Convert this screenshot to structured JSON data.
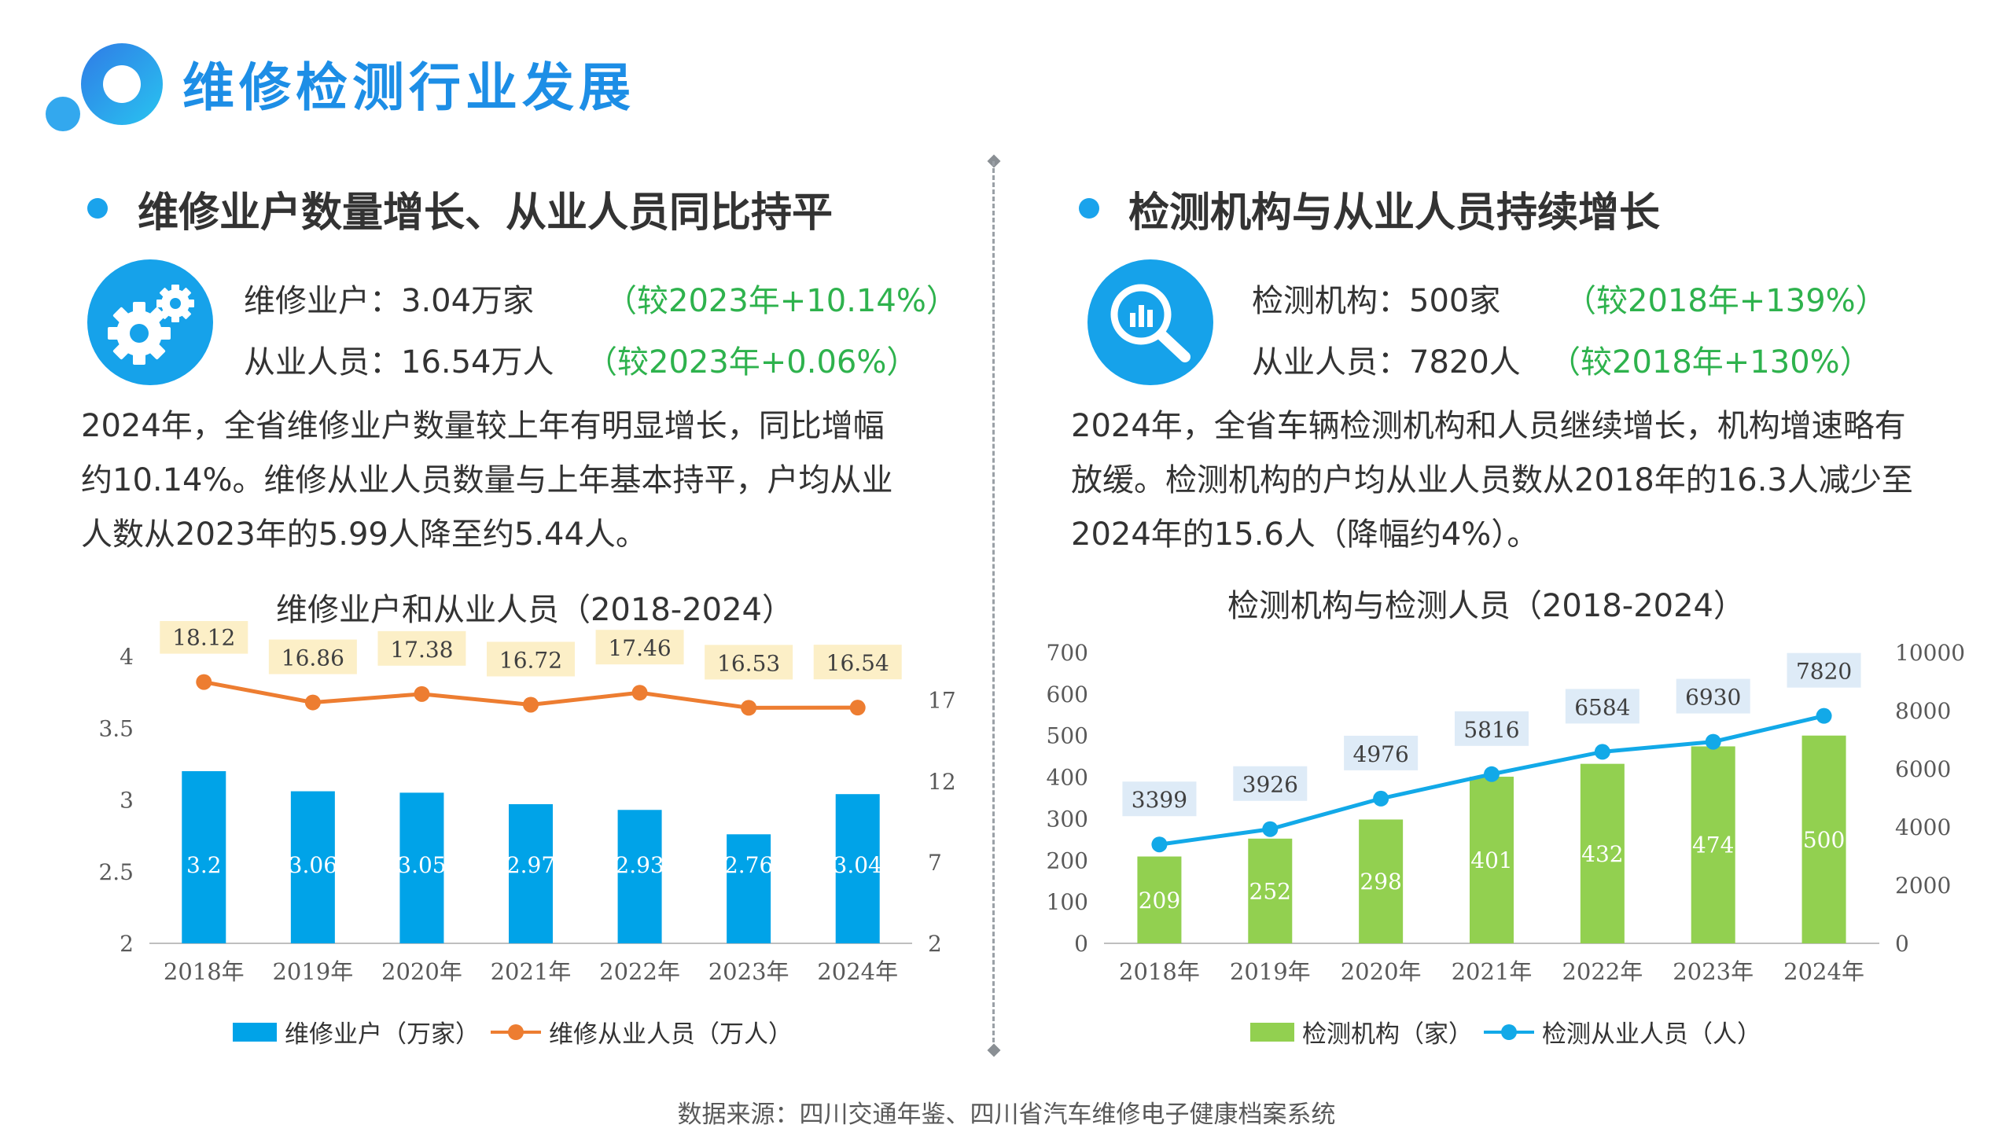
{
  "header": {
    "title": "维修检测行业发展"
  },
  "left": {
    "section_title": "维修业户数量增长、从业人员同比持平",
    "stat1_label": "维修业户：3.04万家",
    "stat1_change": "（较2023年+10.14%）",
    "stat2_label": "从业人员：16.54万人",
    "stat2_change": "（较2023年+0.06%）",
    "paragraph": [
      "2024年，全省维修业户数量较上年有明显增长，同比增幅",
      "约10.14%。维修从业人员数量与上年基本持平，户均从业",
      "人数从2023年的5.99人降至约5.44人。"
    ],
    "chart_title": "维修业户和从业人员（2018-2024）",
    "legend_bar": "维修业户（万家）",
    "legend_line": "维修从业人员（万人）",
    "icon": "gears-icon"
  },
  "right": {
    "section_title": "检测机构与从业人员持续增长",
    "stat1_label": "检测机构：500家",
    "stat1_change": "（较2018年+139%）",
    "stat2_label": "从业人员：7820人",
    "stat2_change": "（较2018年+130%）",
    "paragraph": [
      "2024年，全省车辆检测机构和人员继续增长，机构增速略有",
      "放缓。检测机构的户均从业人员数从2018年的16.3人减少至",
      "2024年的15.6人（降幅约4%）。"
    ],
    "chart_title": "检测机构与检测人员（2018-2024）",
    "legend_bar": "检测机构（家）",
    "legend_line": "检测从业人员（人）",
    "icon": "magnifier-chart-icon"
  },
  "source": "数据来源：四川交通年鉴、四川省汽车维修电子健康档案系统",
  "colors": {
    "accent": "#1d8ee6",
    "blue_bar": "#00a3e8",
    "orange": "#ed7d31",
    "green": "#92d050",
    "line_blue": "#12a9e8",
    "green_text": "#2eb24d"
  },
  "chart_data": [
    {
      "type": "bar",
      "title": "维修业户和从业人员（2018-2024）",
      "categories": [
        "2018年",
        "2019年",
        "2020年",
        "2021年",
        "2022年",
        "2023年",
        "2024年"
      ],
      "series": [
        {
          "name": "维修业户（万家）",
          "type": "bar",
          "axis": "left",
          "values": [
            3.2,
            3.06,
            3.05,
            2.97,
            2.93,
            2.76,
            3.04
          ],
          "labels": [
            "3.2",
            "3.06",
            "3.05",
            "2.97",
            "2.93",
            "2.76",
            "3.04"
          ]
        },
        {
          "name": "维修从业人员（万人）",
          "type": "line",
          "axis": "right",
          "values": [
            18.12,
            16.86,
            17.38,
            16.72,
            17.46,
            16.53,
            16.54
          ],
          "labels": [
            "18.12",
            "16.86",
            "17.38",
            "16.72",
            "17.46",
            "16.53",
            "16.54"
          ]
        }
      ],
      "y_left": {
        "min": 2,
        "max": 4,
        "ticks": [
          "2",
          "2.5",
          "3",
          "3.5",
          "4"
        ]
      },
      "y_right": {
        "min": 2,
        "max": 19.7,
        "ticks": [
          "2",
          "7",
          "12",
          "17"
        ]
      },
      "legend": "bottom",
      "grid": false
    },
    {
      "type": "bar",
      "title": "检测机构与检测人员（2018-2024）",
      "categories": [
        "2018年",
        "2019年",
        "2020年",
        "2021年",
        "2022年",
        "2023年",
        "2024年"
      ],
      "series": [
        {
          "name": "检测机构（家）",
          "type": "bar",
          "axis": "left",
          "values": [
            209,
            252,
            298,
            401,
            432,
            474,
            500
          ],
          "labels": [
            "209",
            "252",
            "298",
            "401",
            "432",
            "474",
            "500"
          ]
        },
        {
          "name": "检测从业人员（人）",
          "type": "line",
          "axis": "right",
          "values": [
            3399,
            3926,
            4976,
            5816,
            6584,
            6930,
            7820
          ],
          "labels": [
            "3399",
            "3926",
            "4976",
            "5816",
            "6584",
            "6930",
            "7820"
          ]
        }
      ],
      "y_left": {
        "min": 0,
        "max": 700,
        "ticks": [
          "0",
          "100",
          "200",
          "300",
          "400",
          "500",
          "600",
          "700"
        ]
      },
      "y_right": {
        "min": 0,
        "max": 10000,
        "ticks": [
          "0",
          "2000",
          "4000",
          "6000",
          "8000",
          "10000"
        ]
      },
      "legend": "bottom",
      "grid": false
    }
  ]
}
